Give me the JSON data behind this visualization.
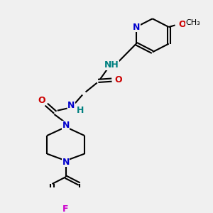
{
  "bg_color": "#f0f0f0",
  "bond_color": "#000000",
  "N_color": "#0000cc",
  "O_color": "#cc0000",
  "F_color": "#cc00cc",
  "H_color": "#008080",
  "line_width": 1.5,
  "figsize": [
    3.0,
    3.0
  ],
  "dpi": 100,
  "xlim": [
    0,
    10
  ],
  "ylim": [
    0,
    10
  ]
}
